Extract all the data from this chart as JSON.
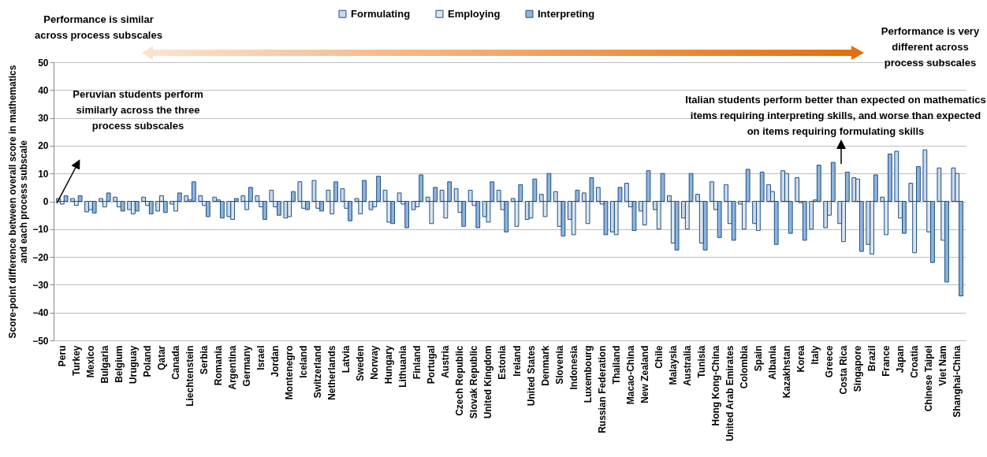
{
  "chart_data": {
    "type": "bar",
    "ylabel": "Score-point difference between overall score in mathematics and each process subscale",
    "categories": [
      "Peru",
      "Turkey",
      "Mexico",
      "Bulgaria",
      "Belgium",
      "Uruguay",
      "Poland",
      "Qatar",
      "Canada",
      "Liechtenstein",
      "Serbia",
      "Romania",
      "Argentina",
      "Germany",
      "Israel",
      "Jordan",
      "Montenegro",
      "Iceland",
      "Switzerland",
      "Netherlands",
      "Latvia",
      "Sweden",
      "Norway",
      "Hungary",
      "Lithuania",
      "Finland",
      "Portugal",
      "Austria",
      "Czech Republic",
      "Slovak Republic",
      "United Kingdom",
      "Estonia",
      "Ireland",
      "United States",
      "Denmark",
      "Slovenia",
      "Indonesia",
      "Luxembourg",
      "Russian Federation",
      "Thailand",
      "Macao-China",
      "New Zealand",
      "Chile",
      "Malaysia",
      "Australia",
      "Tunisia",
      "Hong Kong-China",
      "United Arab Emirates",
      "Colombia",
      "Spain",
      "Albania",
      "Kazakhstan",
      "Korea",
      "Italy",
      "Greece",
      "Costa Rica",
      "Singapore",
      "Brazil",
      "France",
      "Japan",
      "Croatia",
      "Chinese Taipei",
      "Viet Nam",
      "Shanghai-China"
    ],
    "series": [
      {
        "name": "Formulating",
        "color": "#c6d9f1",
        "values": [
          1,
          1,
          -3.8,
          1,
          1.5,
          -3,
          1.5,
          -3.5,
          -1,
          2,
          2,
          1.5,
          -5.5,
          2,
          2,
          4,
          -6,
          7,
          7.5,
          4,
          4.5,
          1,
          -3,
          4,
          3,
          -3,
          1.5,
          4,
          4.5,
          4,
          -5.5,
          4,
          1,
          -6.5,
          2.5,
          3.5,
          -6.5,
          3,
          5,
          -11,
          6.5,
          -3.5,
          -3,
          2,
          -6,
          2.5,
          7,
          6,
          -1,
          -8,
          6,
          11,
          8.5,
          -10,
          -9.5,
          -8,
          8.5,
          -15.5,
          1.5,
          18,
          6.5,
          18.5,
          12,
          12
        ]
      },
      {
        "name": "Employing",
        "color": "#dce6f2",
        "values": [
          -1,
          -1.5,
          -3,
          -2,
          -2,
          -4.5,
          -1.5,
          2,
          -3.5,
          0.5,
          -1.5,
          0.5,
          -6.5,
          -3,
          -2,
          -2,
          -5.5,
          -2.5,
          -2.5,
          -4.5,
          -2.5,
          -4.5,
          -2,
          -7.5,
          -1,
          -2,
          -8,
          -6,
          -4,
          -1.5,
          -7.5,
          -3,
          -9,
          -6,
          -5.5,
          -9,
          -12,
          -8,
          -1,
          -12,
          -2,
          -8.5,
          -10,
          -15,
          -10,
          -15,
          -3,
          -8,
          -10,
          -10.5,
          3.5,
          10,
          -0.5,
          0.5,
          -5,
          -14.5,
          8,
          -19,
          -12,
          -6,
          -18.5,
          -11,
          -14,
          10
        ]
      },
      {
        "name": "Interpreting",
        "color": "#8db3e2",
        "values": [
          2,
          2,
          -4.2,
          3,
          -3.5,
          -3.5,
          -4.5,
          -4,
          3,
          7,
          -5.5,
          -6,
          1,
          5,
          -6.5,
          -5,
          3.5,
          -3,
          -3.5,
          7,
          -7,
          7.5,
          9,
          -8,
          -9.5,
          9.5,
          5,
          7,
          -9,
          -9.5,
          7,
          -11,
          6,
          8,
          10,
          -12.5,
          4,
          8.5,
          -12,
          5,
          -10.5,
          11,
          10,
          -17.5,
          10,
          -17.5,
          -13,
          -14,
          11.5,
          10.5,
          -15.5,
          -11.5,
          -14,
          13,
          14,
          10.5,
          -18,
          9.5,
          17,
          -11.5,
          12.5,
          -22,
          -29,
          -34
        ]
      }
    ],
    "ylim": [
      -50,
      50
    ],
    "yticks": [
      -50,
      -40,
      -30,
      -20,
      -10,
      0,
      10,
      20,
      30,
      40,
      50
    ],
    "grid": "y",
    "legend": "top",
    "annotations": [
      "Performance is similar across process subscales",
      "Performance is very different across process subscales",
      "Peruvian students perform similarly across the three process subscales",
      "Italian students perform better than expected on mathematics items requiring interpreting skills, and worse than expected on items requiring formulating skills"
    ]
  }
}
